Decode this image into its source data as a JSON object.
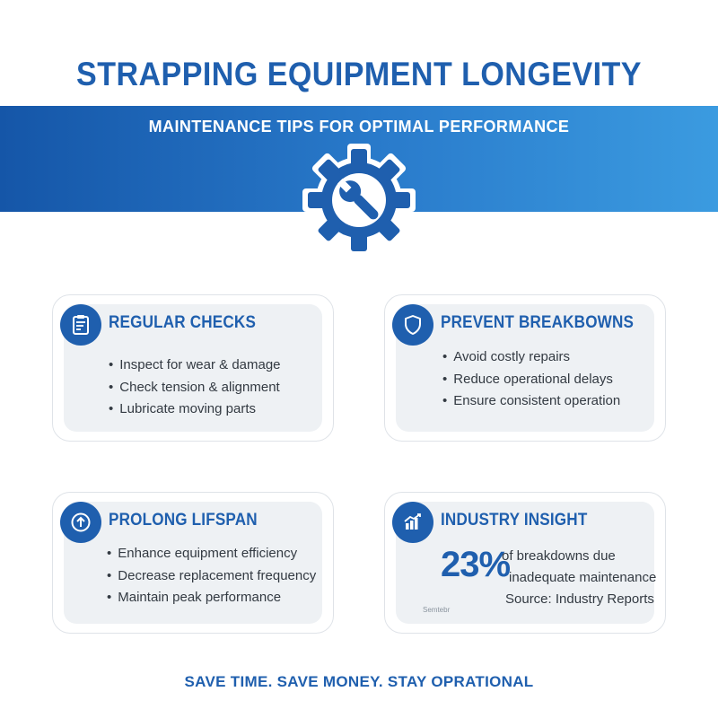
{
  "header": {
    "title": "STRAPPING EQUIPMENT LONGEVITY",
    "subtitle": "MAINTENANCE TIPS FOR OPTIMAL PERFORMANCE",
    "hero_icon": "gear-wrench-icon"
  },
  "colors": {
    "brand_blue": "#1f5fae",
    "band_start": "#1556a8",
    "band_end": "#3b9be0",
    "card_fill": "#eef1f4",
    "text": "#333a42"
  },
  "cards": {
    "regular_checks": {
      "icon": "clipboard-icon",
      "title": "REGULAR CHECKS",
      "items": [
        "Inspect for wear & damage",
        "Check tension & alignment",
        "Lubricate moving parts"
      ]
    },
    "prevent_breakdowns": {
      "icon": "shield-icon",
      "title": "PREVENT BREAKBOWNS",
      "items": [
        "Avoid costly repairs",
        "Reduce operational delays",
        "Ensure consistent operation"
      ]
    },
    "prolong_lifespan": {
      "icon": "arrow-up-circle-icon",
      "title": "PROLONG LIFSPAN",
      "items": [
        "Enhance equipment efficiency",
        "Decrease replacement frequency",
        "Maintain peak performance"
      ]
    },
    "industry_insight": {
      "icon": "bar-chart-icon",
      "title": "INDUSTRY INSIGHT",
      "stat": "23%",
      "line1": "of breakdowns due",
      "line2": "inadequate maintenance",
      "source": "Source: Industry Reports",
      "caption": "Semtebr"
    }
  },
  "footer": {
    "tagline": "SAVE TIME. SAVE MONEY. STAY OPRATIONAL"
  }
}
